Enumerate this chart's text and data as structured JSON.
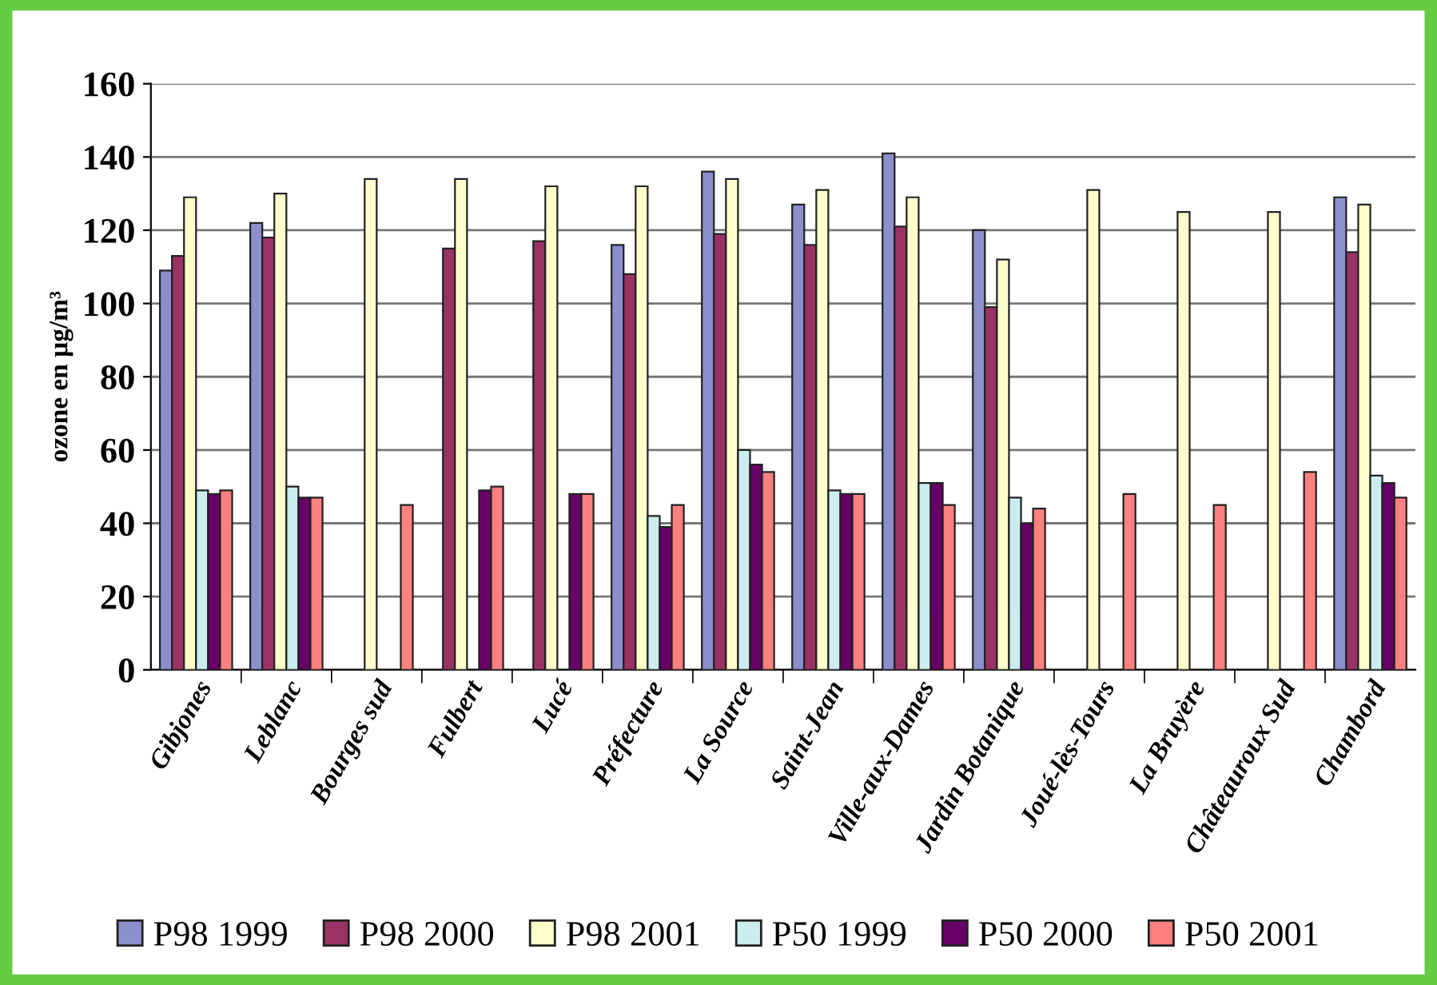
{
  "chart_data": {
    "type": "bar",
    "ylabel": "ozone en µg/m³",
    "categories": [
      "Gibjones",
      "Leblanc",
      "Bourges sud",
      "Fulbert",
      "Lucé",
      "Préfecture",
      "La Source",
      "Saint-Jean",
      "Ville-aux-Dames",
      "Jardin Botanique",
      "Joué-lès-Tours",
      "La Bruyère",
      "Châteauroux Sud",
      "Chambord"
    ],
    "series": [
      {
        "name": "P98 1999",
        "color": "#8c8fcc",
        "values": [
          109,
          122,
          null,
          null,
          null,
          116,
          136,
          127,
          141,
          120,
          null,
          null,
          null,
          129
        ]
      },
      {
        "name": "P98 2000",
        "color": "#993366",
        "values": [
          113,
          118,
          null,
          115,
          117,
          108,
          119,
          116,
          121,
          99,
          null,
          null,
          null,
          114
        ]
      },
      {
        "name": "P98 2001",
        "color": "#ffffcc",
        "values": [
          129,
          130,
          134,
          134,
          132,
          132,
          134,
          131,
          129,
          112,
          131,
          125,
          125,
          127
        ]
      },
      {
        "name": "P50 1999",
        "color": "#ccecf0",
        "values": [
          49,
          50,
          null,
          null,
          null,
          42,
          60,
          49,
          51,
          47,
          null,
          null,
          null,
          53
        ]
      },
      {
        "name": "P50 2000",
        "color": "#660066",
        "values": [
          48,
          47,
          null,
          49,
          48,
          39,
          56,
          48,
          51,
          40,
          null,
          null,
          null,
          51
        ]
      },
      {
        "name": "P50 2001",
        "color": "#ff8080",
        "values": [
          49,
          47,
          45,
          50,
          48,
          45,
          54,
          48,
          45,
          44,
          48,
          45,
          54,
          47
        ]
      }
    ],
    "ylim": [
      0,
      160
    ],
    "yticks": [
      0,
      20,
      40,
      60,
      80,
      100,
      120,
      140,
      160
    ],
    "grid": "y",
    "legend": "bottom"
  }
}
